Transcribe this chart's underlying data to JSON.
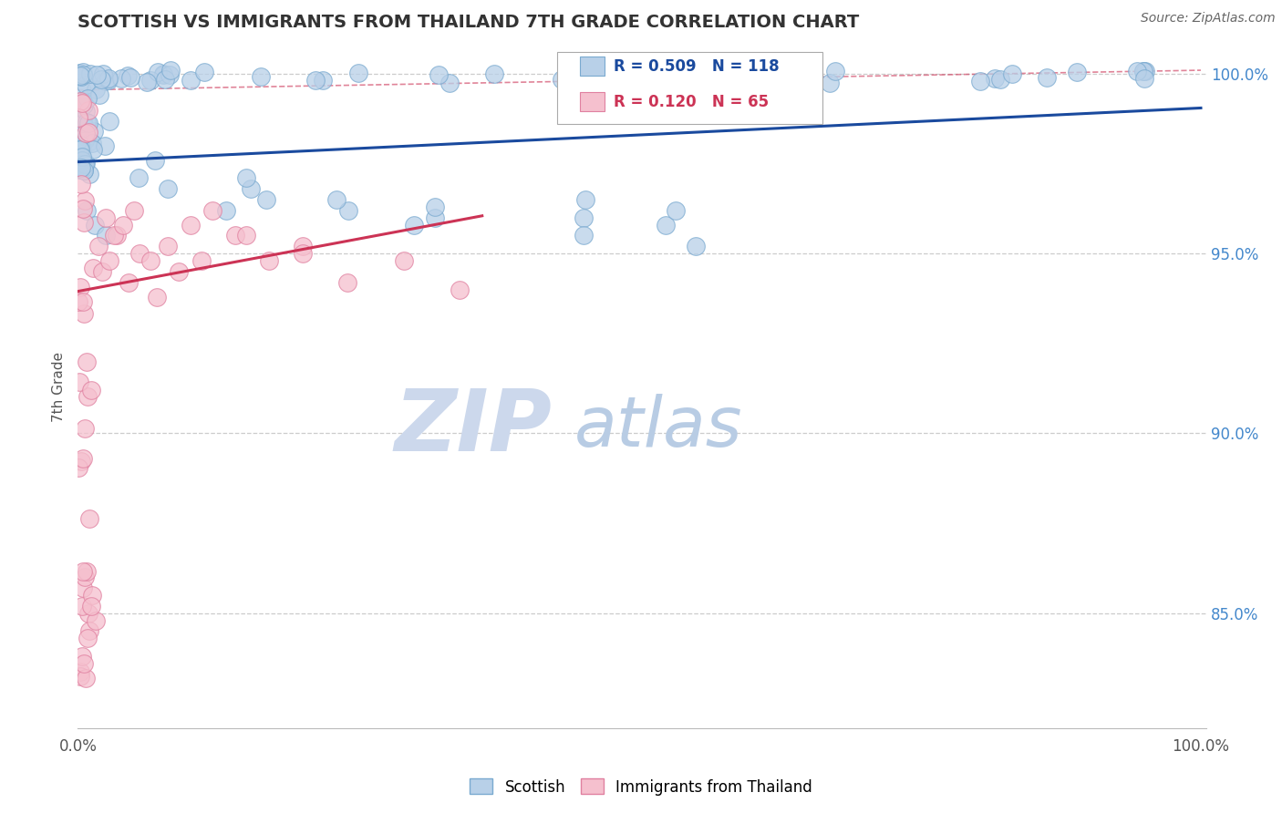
{
  "title": "SCOTTISH VS IMMIGRANTS FROM THAILAND 7TH GRADE CORRELATION CHART",
  "source": "Source: ZipAtlas.com",
  "ylabel": "7th Grade",
  "y_tick_labels": [
    "85.0%",
    "90.0%",
    "95.0%",
    "100.0%"
  ],
  "y_tick_values": [
    0.85,
    0.9,
    0.95,
    1.0
  ],
  "legend_blue_label": "Scottish",
  "legend_pink_label": "Immigrants from Thailand",
  "r_blue": 0.509,
  "n_blue": 118,
  "r_pink": 0.12,
  "n_pink": 65,
  "blue_color": "#b8d0e8",
  "blue_edge": "#7aaad0",
  "pink_color": "#f5c0ce",
  "pink_edge": "#e080a0",
  "trend_blue_color": "#1a4a9e",
  "trend_pink_color": "#cc3355",
  "trend_dashed_color": "#cc3355",
  "watermark_zip_color": "#ccd8ec",
  "watermark_atlas_color": "#b8cce4",
  "background_color": "#ffffff",
  "grid_color": "#cccccc",
  "title_color": "#333333",
  "right_axis_color": "#4488cc",
  "figsize": [
    14.06,
    8.92
  ],
  "dpi": 100,
  "ylim_low": 0.818,
  "ylim_high": 1.008,
  "xlim_low": 0.0,
  "xlim_high": 1.005
}
